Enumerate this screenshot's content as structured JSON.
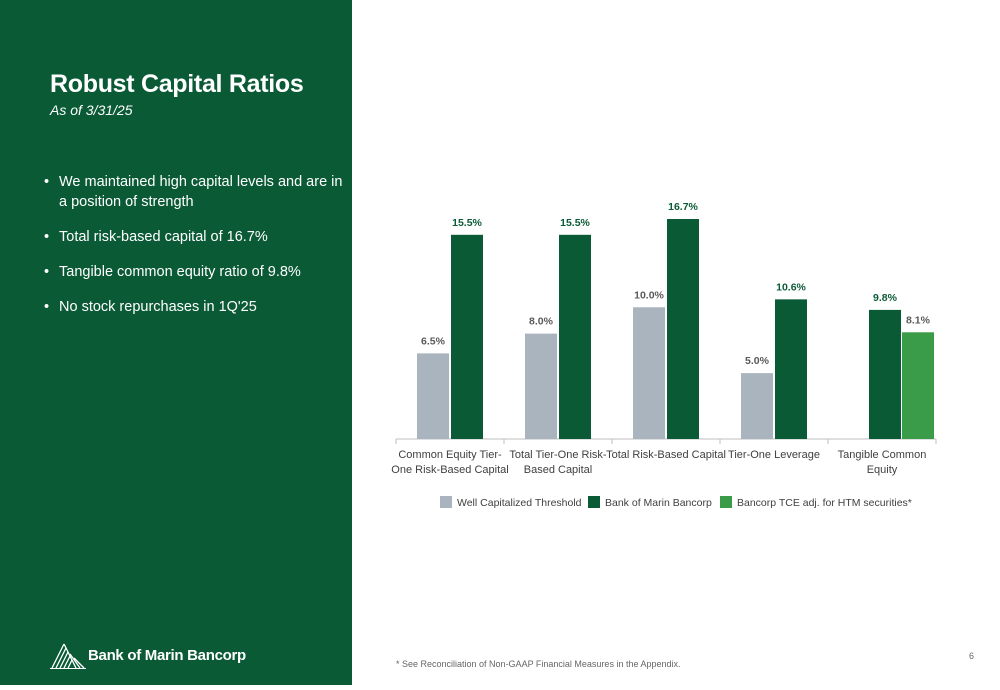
{
  "slide": {
    "title": "Robust Capital Ratios",
    "subtitle": "As of 3/31/25",
    "bullets": [
      "We maintained high capital levels and are in a position of strength",
      "Total risk-based capital of 16.7%",
      "Tangible common equity ratio of 9.8%",
      "No stock repurchases in 1Q'25"
    ],
    "logo_text": "Bank of Marin Bancorp",
    "footnote": "* See Reconciliation of Non-GAAP Financial Measures in the Appendix.",
    "page_number": "6",
    "panel_color": "#0b5a36"
  },
  "chart_data": {
    "type": "bar",
    "categories": [
      [
        "Common Equity Tier-",
        "One Risk-Based Capital"
      ],
      [
        "Total Tier-One Risk-",
        "Based Capital"
      ],
      [
        "Total Risk-Based Capital"
      ],
      [
        "Tier-One Leverage"
      ],
      [
        "Tangible Common",
        "Equity"
      ]
    ],
    "series": [
      {
        "name": "Well Capitalized Threshold",
        "color": "#a9b4bf",
        "values": [
          6.5,
          8.0,
          10.0,
          5.0,
          null
        ],
        "labels": [
          "6.5%",
          "8.0%",
          "10.0%",
          "5.0%",
          ""
        ],
        "label_color": "#595959"
      },
      {
        "name": "Bank of Marin Bancorp",
        "color": "#0b5a36",
        "values": [
          15.5,
          15.5,
          16.7,
          10.6,
          9.8
        ],
        "labels": [
          "15.5%",
          "15.5%",
          "16.7%",
          "10.6%",
          "9.8%"
        ],
        "label_color": "#0b5a36"
      },
      {
        "name": "Bancorp TCE adj. for HTM securities*",
        "color": "#3a9b48",
        "values": [
          null,
          null,
          null,
          null,
          8.1
        ],
        "labels": [
          "",
          "",
          "",
          "",
          "8.1%"
        ],
        "label_color": "#595959"
      }
    ],
    "ylim": [
      0,
      16.7
    ],
    "legend_position": "bottom",
    "grid": false
  }
}
